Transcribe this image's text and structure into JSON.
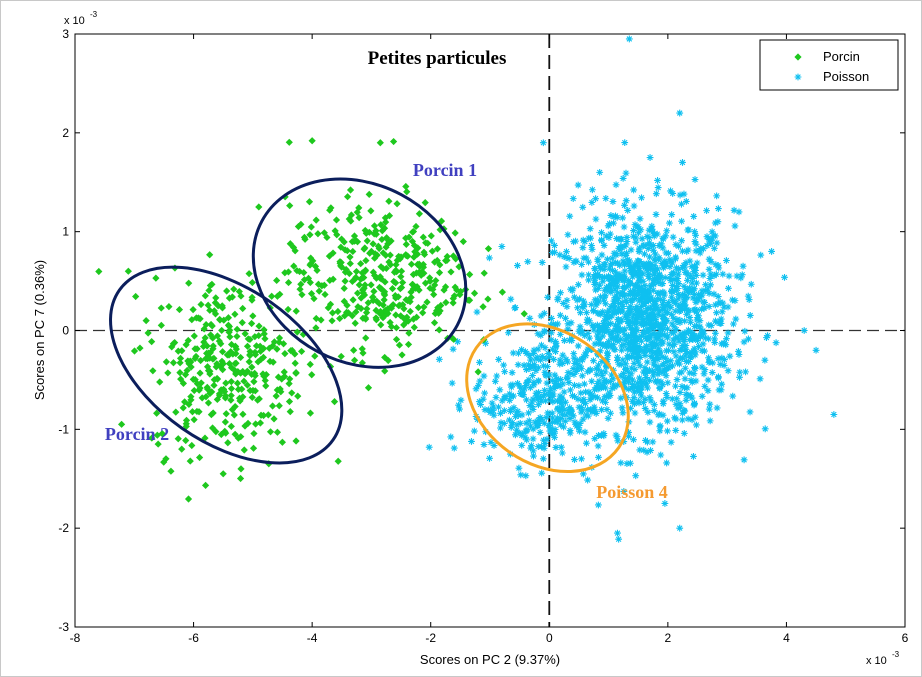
{
  "chart_data": {
    "type": "scatter",
    "title": "Petites particules",
    "xlabel": "Scores on PC 2 (9.37%)",
    "ylabel": "Scores on PC 7 (0.36%)",
    "x_exponent": "x 10",
    "x_exponent_power": "-3",
    "y_exponent": "x 10",
    "y_exponent_power": "-3",
    "xlim": [
      -8,
      6
    ],
    "ylim": [
      -3,
      3
    ],
    "xticks": [
      -8,
      -6,
      -4,
      -2,
      0,
      2,
      4,
      6
    ],
    "yticks": [
      -3,
      -2,
      -1,
      0,
      1,
      2,
      3
    ],
    "reference_lines": {
      "x": 0,
      "y": 0,
      "style": "dashed"
    },
    "legend_position": "top-right",
    "series": [
      {
        "name": "Porcin",
        "marker": "filled-diamond",
        "color": "#1ec81e",
        "clusters": [
          {
            "center": [
              -5.4,
              -0.35
            ],
            "spread": [
              0.65,
              0.45
            ],
            "count": 340
          },
          {
            "center": [
              -2.9,
              0.55
            ],
            "spread": [
              0.75,
              0.38
            ],
            "count": 380
          }
        ],
        "outliers": [
          [
            -7.1,
            0.6
          ],
          [
            -4.0,
            1.92
          ],
          [
            -2.85,
            1.9
          ],
          [
            -5.5,
            -1.45
          ],
          [
            -6.2,
            -1.2
          ],
          [
            -1.45,
            0.9
          ],
          [
            -1.9,
            0.2
          ],
          [
            -6.8,
            0.1
          ],
          [
            -4.9,
            1.25
          ],
          [
            -5.2,
            -1.4
          ],
          [
            -3.3,
            -0.2
          ],
          [
            -1.6,
            0.35
          ]
        ]
      },
      {
        "name": "Poisson",
        "marker": "asterisk",
        "color": "#0fc0f0",
        "clusters": [
          {
            "center": [
              1.6,
              0.1
            ],
            "spread": [
              0.75,
              0.55
            ],
            "count": 1400
          },
          {
            "center": [
              -0.2,
              -0.7
            ],
            "spread": [
              0.55,
              0.32
            ],
            "count": 320
          }
        ],
        "outliers": [
          [
            1.35,
            2.95
          ],
          [
            2.2,
            2.2
          ],
          [
            -0.1,
            1.9
          ],
          [
            0.85,
            1.6
          ],
          [
            1.7,
            1.75
          ],
          [
            4.8,
            -0.85
          ],
          [
            3.75,
            0.8
          ],
          [
            2.2,
            -2.0
          ],
          [
            1.15,
            -2.05
          ],
          [
            1.95,
            -1.75
          ],
          [
            4.5,
            -0.2
          ],
          [
            4.3,
            0.0
          ],
          [
            3.2,
            1.2
          ],
          [
            -0.8,
            0.85
          ]
        ]
      }
    ],
    "group_annotations": [
      {
        "label": "Porcin 1",
        "color": "#4040c0"
      },
      {
        "label": "Porcin 2",
        "color": "#4040c0"
      },
      {
        "label": "Poisson 4",
        "color": "#f59a30"
      }
    ],
    "ellipses": [
      {
        "group": "Porcin 1",
        "center": [
          -3.2,
          0.58
        ],
        "semi_axes": [
          1.5,
          1.12
        ],
        "angle_deg": -62,
        "color": "#0b1e5c"
      },
      {
        "group": "Porcin 2",
        "center": [
          -5.45,
          -0.35
        ],
        "semi_axes": [
          1.3,
          1.32
        ],
        "angle_deg": -55,
        "color": "#0b1e5c"
      },
      {
        "group": "Poisson 4",
        "center": [
          -0.03,
          -0.68
        ],
        "semi_axes": [
          1.12,
          0.88
        ],
        "angle_deg": -55,
        "color": "#f5a623"
      }
    ]
  }
}
